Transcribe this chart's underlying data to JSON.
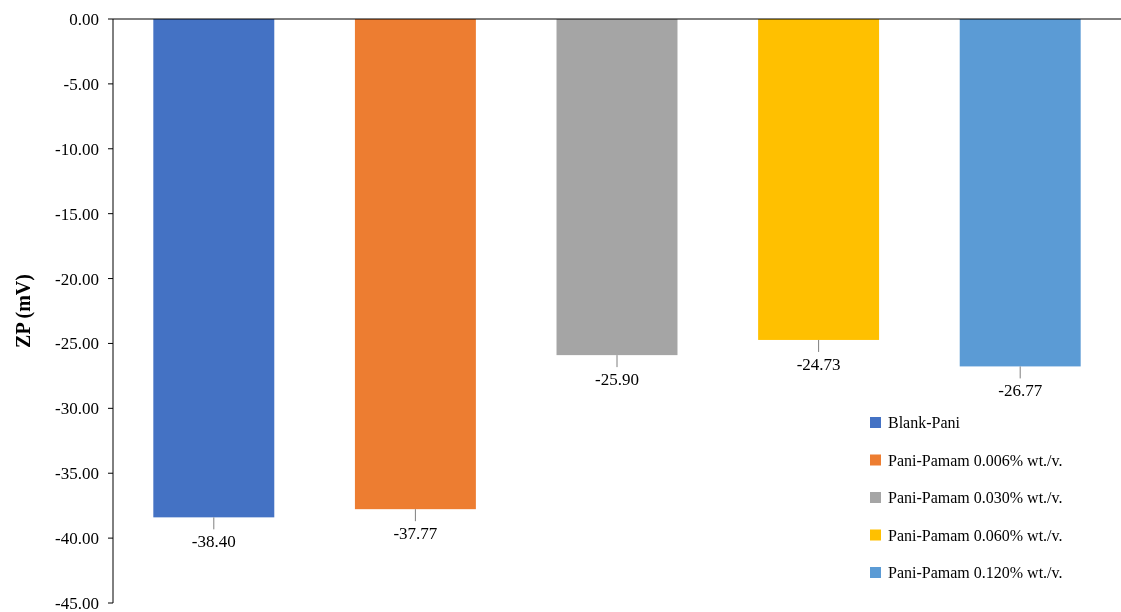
{
  "chart_data": {
    "type": "bar",
    "ylabel": "ZP (mV)",
    "categories": [
      null
    ],
    "series": [
      {
        "name": "Blank-Pani",
        "color": "#4472c4",
        "values": [
          -38.4
        ],
        "value_labels": [
          "-38.40"
        ]
      },
      {
        "name": "Pani-Pamam 0.006% wt./v.",
        "color": "#ed7d31",
        "values": [
          -37.77
        ],
        "value_labels": [
          "-37.77"
        ]
      },
      {
        "name": "Pani-Pamam 0.030% wt./v.",
        "color": "#a5a5a5",
        "values": [
          -25.9
        ],
        "value_labels": [
          "-25.90"
        ]
      },
      {
        "name": "Pani-Pamam 0.060% wt./v.",
        "color": "#ffc000",
        "values": [
          -24.73
        ],
        "value_labels": [
          "-24.73"
        ]
      },
      {
        "name": "Pani-Pamam 0.120% wt./v.",
        "color": "#5b9bd5",
        "values": [
          -26.77
        ],
        "value_labels": [
          "-26.77"
        ]
      }
    ],
    "ylim": [
      -45,
      0
    ],
    "yticks": [
      {
        "value": -45,
        "label": "-45.00"
      },
      {
        "value": -40,
        "label": "-40.00"
      },
      {
        "value": -35,
        "label": "-35.00"
      },
      {
        "value": -30,
        "label": "-30.00"
      },
      {
        "value": -25,
        "label": "-25.00"
      },
      {
        "value": -20,
        "label": "-20.00"
      },
      {
        "value": -15,
        "label": "-15.00"
      },
      {
        "value": -10,
        "label": "-10.00"
      },
      {
        "value": -5,
        "label": "-5.00"
      },
      {
        "value": 0,
        "label": "0.00"
      }
    ],
    "legend": "bottom right"
  }
}
